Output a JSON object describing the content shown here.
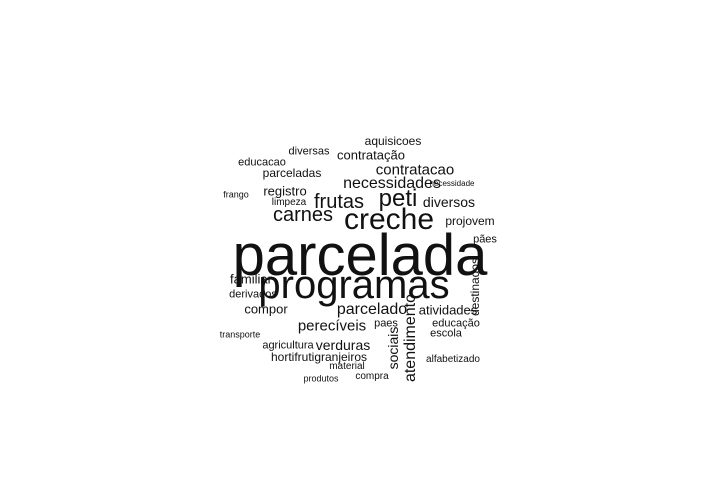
{
  "words": [
    "parcelada",
    "programas",
    "creche",
    "peti",
    "frutas",
    "carnes",
    "necessidades",
    "contratacao",
    "contratação",
    "parcelado",
    "perecíveis",
    "atendimento",
    "sociais",
    "verduras",
    "hortifrutigranjeiros",
    "familiar",
    "compor",
    "registro",
    "aquisicoes",
    "parceladas",
    "diversos",
    "atividades",
    "projovem",
    "educação",
    "escola",
    "destinados",
    "agricultura",
    "pães",
    "paes",
    "alfabetizado",
    "derivados",
    "educacao",
    "diversas",
    "limpeza",
    "material",
    "compra",
    "produtos",
    "transporte",
    "frango",
    "necessidade"
  ]
}
